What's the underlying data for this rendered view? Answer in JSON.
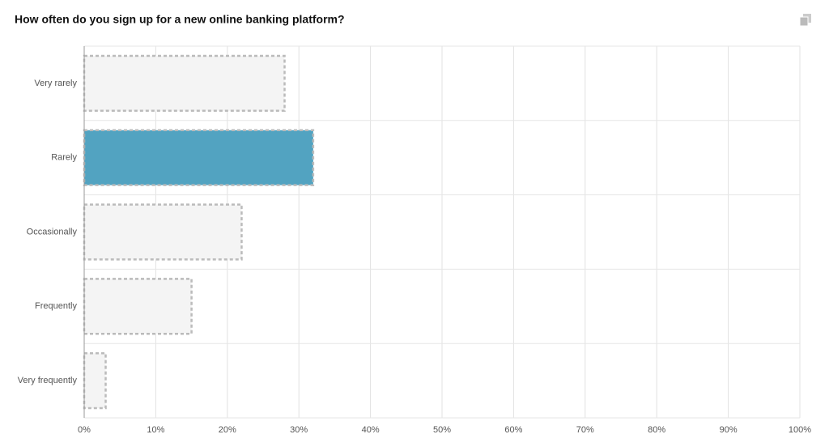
{
  "chart_data": {
    "type": "bar",
    "orientation": "horizontal",
    "title": "How often do you sign up for a new online banking platform?",
    "categories": [
      "Very rarely",
      "Rarely",
      "Occasionally",
      "Frequently",
      "Very frequently"
    ],
    "values": [
      28,
      32,
      22,
      15,
      3
    ],
    "colors": [
      "#f4f4f4",
      "#52a3c1",
      "#f4f4f4",
      "#f4f4f4",
      "#f4f4f4"
    ],
    "border_color": "#bbbbbb",
    "xlim": [
      0,
      100
    ],
    "xticks": [
      {
        "value": 0,
        "label": "0%"
      },
      {
        "value": 10,
        "label": "10%"
      },
      {
        "value": 20,
        "label": "20%"
      },
      {
        "value": 30,
        "label": "30%"
      },
      {
        "value": 40,
        "label": "40%"
      },
      {
        "value": 50,
        "label": "50%"
      },
      {
        "value": 60,
        "label": "60%"
      },
      {
        "value": 70,
        "label": "70%"
      },
      {
        "value": 80,
        "label": "80%"
      },
      {
        "value": 90,
        "label": "90%"
      },
      {
        "value": 100,
        "label": "100%"
      }
    ],
    "grid": true
  }
}
